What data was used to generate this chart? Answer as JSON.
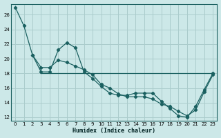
{
  "xlabel": "Humidex (Indice chaleur)",
  "background_color": "#cce8e8",
  "grid_color": "#aacccc",
  "line_color": "#1a6060",
  "xlim": [
    -0.5,
    23.5
  ],
  "ylim": [
    11.5,
    27.5
  ],
  "yticks": [
    12,
    14,
    16,
    18,
    20,
    22,
    24,
    26
  ],
  "xticks": [
    0,
    1,
    2,
    3,
    4,
    5,
    6,
    7,
    8,
    9,
    10,
    11,
    12,
    13,
    14,
    15,
    16,
    17,
    18,
    19,
    20,
    21,
    22,
    23
  ],
  "line1_x": [
    0,
    1,
    2,
    3,
    4,
    5,
    6,
    7,
    8,
    9,
    10,
    11,
    12,
    13,
    14,
    15,
    16,
    17,
    18,
    19,
    20,
    21,
    22,
    23
  ],
  "line1_y": [
    27.0,
    24.5,
    20.5,
    18.2,
    18.2,
    21.2,
    22.2,
    21.5,
    18.2,
    17.3,
    16.2,
    15.3,
    15.0,
    15.0,
    15.3,
    15.3,
    15.3,
    14.2,
    13.2,
    12.2,
    12.0,
    13.5,
    15.8,
    18.0
  ],
  "line2_x": [
    2,
    3,
    4,
    5,
    6,
    7,
    8,
    9,
    10,
    11,
    12,
    13,
    14,
    15,
    16,
    17,
    18,
    19,
    20,
    21,
    22,
    23
  ],
  "line2_y": [
    20.5,
    18.8,
    18.8,
    19.8,
    19.5,
    19.0,
    18.5,
    17.8,
    16.5,
    16.0,
    15.2,
    14.8,
    14.8,
    14.8,
    14.5,
    13.8,
    13.5,
    12.8,
    12.2,
    13.0,
    15.5,
    17.8
  ],
  "line3_x": [
    3,
    20,
    23
  ],
  "line3_y": [
    18.0,
    18.0,
    18.0
  ]
}
